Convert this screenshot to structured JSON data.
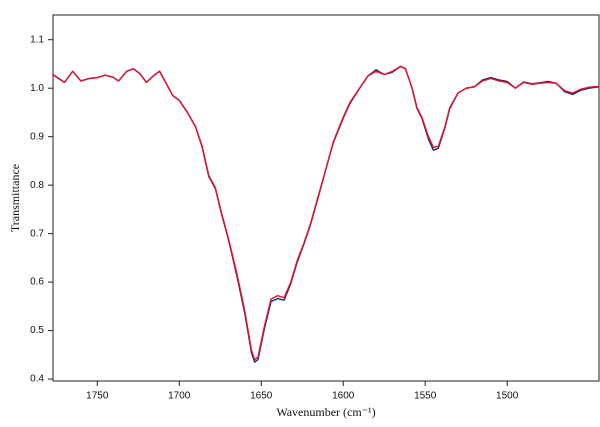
{
  "chart_data": {
    "type": "line",
    "xlabel": "Wavenumber (cm⁻¹)",
    "ylabel": "Transmittance",
    "x": [
      1777,
      1770,
      1765,
      1760,
      1755,
      1750,
      1745,
      1740,
      1737,
      1732,
      1728,
      1724,
      1720,
      1716,
      1712,
      1708,
      1704,
      1700,
      1695,
      1690,
      1686,
      1682,
      1678,
      1674,
      1670,
      1665,
      1660,
      1656,
      1654,
      1652,
      1648,
      1644,
      1640,
      1636,
      1632,
      1628,
      1624,
      1620,
      1615,
      1610,
      1606,
      1600,
      1596,
      1590,
      1585,
      1580,
      1575,
      1570,
      1565,
      1562,
      1558,
      1555,
      1552,
      1548,
      1545,
      1542,
      1538,
      1535,
      1530,
      1525,
      1520,
      1515,
      1510,
      1505,
      1500,
      1495,
      1490,
      1485,
      1480,
      1475,
      1470,
      1465,
      1460,
      1455,
      1450,
      1444
    ],
    "series": [
      {
        "color": "#1a2a6c",
        "values": [
          1.028,
          1.012,
          1.035,
          1.015,
          1.02,
          1.022,
          1.027,
          1.022,
          1.015,
          1.035,
          1.04,
          1.03,
          1.012,
          1.025,
          1.035,
          1.01,
          0.985,
          0.975,
          0.95,
          0.92,
          0.878,
          0.818,
          0.793,
          0.738,
          0.688,
          0.615,
          0.535,
          0.455,
          0.435,
          0.44,
          0.505,
          0.56,
          0.566,
          0.563,
          0.597,
          0.642,
          0.678,
          0.718,
          0.778,
          0.84,
          0.888,
          0.938,
          0.968,
          1.0,
          1.025,
          1.038,
          1.028,
          1.033,
          1.045,
          1.04,
          1.0,
          0.958,
          0.938,
          0.895,
          0.872,
          0.876,
          0.918,
          0.958,
          0.99,
          1.0,
          1.003,
          1.017,
          1.022,
          1.017,
          1.014,
          1.0,
          1.013,
          1.009,
          1.011,
          1.014,
          1.01,
          0.993,
          0.987,
          0.996,
          1.0,
          1.003
        ]
      },
      {
        "color": "#e8102a",
        "values": [
          1.028,
          1.012,
          1.035,
          1.015,
          1.02,
          1.022,
          1.027,
          1.022,
          1.015,
          1.035,
          1.04,
          1.03,
          1.012,
          1.025,
          1.035,
          1.01,
          0.985,
          0.975,
          0.95,
          0.92,
          0.88,
          0.82,
          0.795,
          0.74,
          0.69,
          0.62,
          0.54,
          0.46,
          0.44,
          0.445,
          0.51,
          0.565,
          0.572,
          0.568,
          0.6,
          0.645,
          0.68,
          0.72,
          0.78,
          0.84,
          0.89,
          0.94,
          0.97,
          1.0,
          1.025,
          1.035,
          1.028,
          1.035,
          1.045,
          1.04,
          1.0,
          0.96,
          0.94,
          0.9,
          0.878,
          0.88,
          0.92,
          0.96,
          0.99,
          1.0,
          1.003,
          1.015,
          1.02,
          1.015,
          1.012,
          1.0,
          1.012,
          1.008,
          1.01,
          1.012,
          1.01,
          0.995,
          0.99,
          0.998,
          1.002,
          1.004
        ]
      }
    ],
    "xlim": [
      1777,
      1444
    ],
    "ylim": [
      0.396,
      1.151
    ],
    "xticks": [
      1750,
      1700,
      1650,
      1600,
      1550,
      1500
    ],
    "yticks": [
      0.4,
      0.5,
      0.6,
      0.7,
      0.8,
      0.9,
      {
        "value": 1,
        "label": "1.0"
      },
      1.1
    ]
  }
}
